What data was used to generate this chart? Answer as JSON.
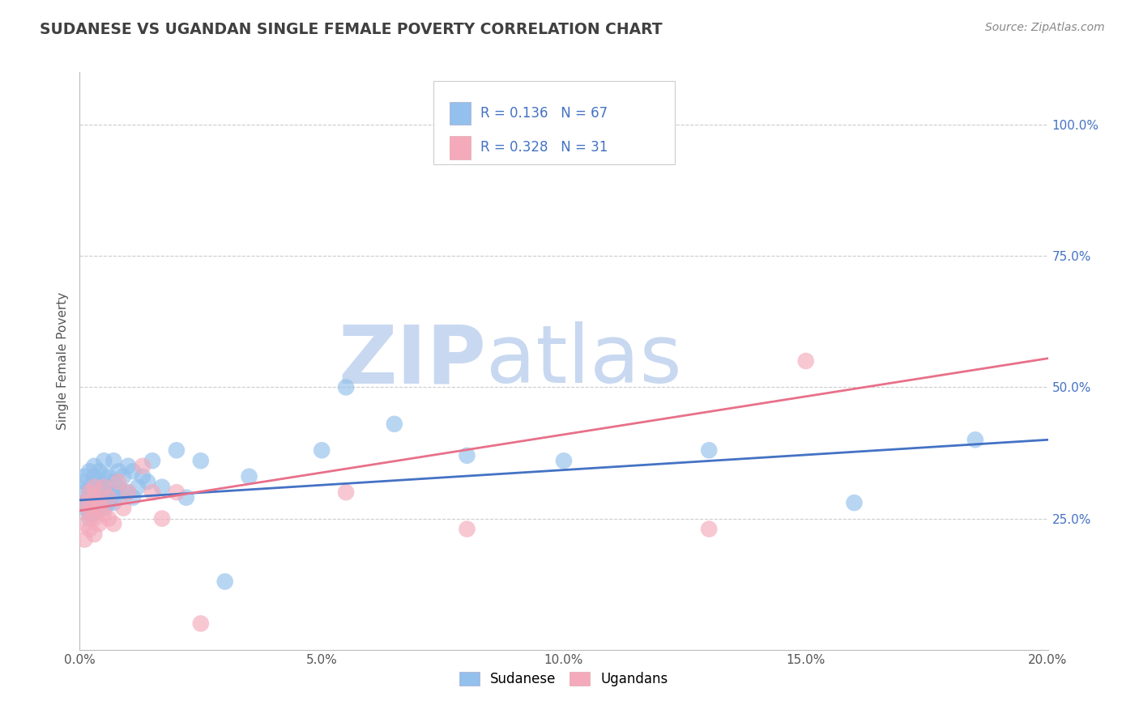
{
  "title": "SUDANESE VS UGANDAN SINGLE FEMALE POVERTY CORRELATION CHART",
  "source": "Source: ZipAtlas.com",
  "ylabel": "Single Female Poverty",
  "xlim": [
    0.0,
    0.2
  ],
  "ylim": [
    0.0,
    1.1
  ],
  "yticks": [
    0.25,
    0.5,
    0.75,
    1.0
  ],
  "ytick_labels": [
    "25.0%",
    "50.0%",
    "75.0%",
    "100.0%"
  ],
  "xticks": [
    0.0,
    0.05,
    0.1,
    0.15,
    0.2
  ],
  "xtick_labels": [
    "0.0%",
    "5.0%",
    "10.0%",
    "15.0%",
    "20.0%"
  ],
  "sudanese_color": "#93C0EC",
  "ugandan_color": "#F4AABB",
  "sudanese_line_color": "#4472C4",
  "ugandan_line_color": "#E8708A",
  "R_sudanese": 0.136,
  "N_sudanese": 67,
  "R_ugandan": 0.328,
  "N_ugandan": 31,
  "legend_label_sudanese": "Sudanese",
  "legend_label_ugandan": "Ugandans",
  "background_color": "#FFFFFF",
  "grid_color": "#CCCCCC",
  "title_color": "#404040",
  "watermark_zip": "ZIP",
  "watermark_atlas": "atlas",
  "watermark_color": "#C8D8F0",
  "legend_text_color": "#4472C4",
  "sudanese_x": [
    0.001,
    0.001,
    0.001,
    0.001,
    0.001,
    0.002,
    0.002,
    0.002,
    0.002,
    0.002,
    0.002,
    0.002,
    0.002,
    0.003,
    0.003,
    0.003,
    0.003,
    0.003,
    0.003,
    0.003,
    0.004,
    0.004,
    0.004,
    0.004,
    0.004,
    0.004,
    0.004,
    0.005,
    0.005,
    0.005,
    0.005,
    0.005,
    0.006,
    0.006,
    0.006,
    0.006,
    0.007,
    0.007,
    0.007,
    0.007,
    0.008,
    0.008,
    0.008,
    0.009,
    0.009,
    0.01,
    0.01,
    0.011,
    0.011,
    0.012,
    0.013,
    0.014,
    0.015,
    0.017,
    0.02,
    0.022,
    0.025,
    0.03,
    0.035,
    0.05,
    0.055,
    0.065,
    0.08,
    0.1,
    0.13,
    0.16,
    0.185
  ],
  "sudanese_y": [
    0.3,
    0.28,
    0.32,
    0.27,
    0.33,
    0.29,
    0.31,
    0.26,
    0.28,
    0.3,
    0.34,
    0.27,
    0.25,
    0.29,
    0.31,
    0.28,
    0.33,
    0.26,
    0.3,
    0.35,
    0.28,
    0.3,
    0.32,
    0.27,
    0.29,
    0.31,
    0.34,
    0.28,
    0.3,
    0.33,
    0.27,
    0.36,
    0.29,
    0.31,
    0.28,
    0.33,
    0.28,
    0.3,
    0.32,
    0.36,
    0.29,
    0.31,
    0.34,
    0.3,
    0.33,
    0.3,
    0.35,
    0.29,
    0.34,
    0.31,
    0.33,
    0.32,
    0.36,
    0.31,
    0.38,
    0.29,
    0.36,
    0.13,
    0.33,
    0.38,
    0.5,
    0.43,
    0.37,
    0.36,
    0.38,
    0.28,
    0.4
  ],
  "ugandan_x": [
    0.001,
    0.001,
    0.001,
    0.002,
    0.002,
    0.002,
    0.002,
    0.003,
    0.003,
    0.003,
    0.003,
    0.004,
    0.004,
    0.004,
    0.005,
    0.005,
    0.006,
    0.006,
    0.007,
    0.008,
    0.009,
    0.01,
    0.013,
    0.015,
    0.017,
    0.02,
    0.025,
    0.055,
    0.08,
    0.13,
    0.15
  ],
  "ugandan_y": [
    0.28,
    0.24,
    0.21,
    0.26,
    0.23,
    0.27,
    0.3,
    0.25,
    0.29,
    0.22,
    0.31,
    0.27,
    0.24,
    0.28,
    0.26,
    0.31,
    0.25,
    0.29,
    0.24,
    0.32,
    0.27,
    0.3,
    0.35,
    0.3,
    0.25,
    0.3,
    0.05,
    0.3,
    0.23,
    0.23,
    0.55
  ]
}
